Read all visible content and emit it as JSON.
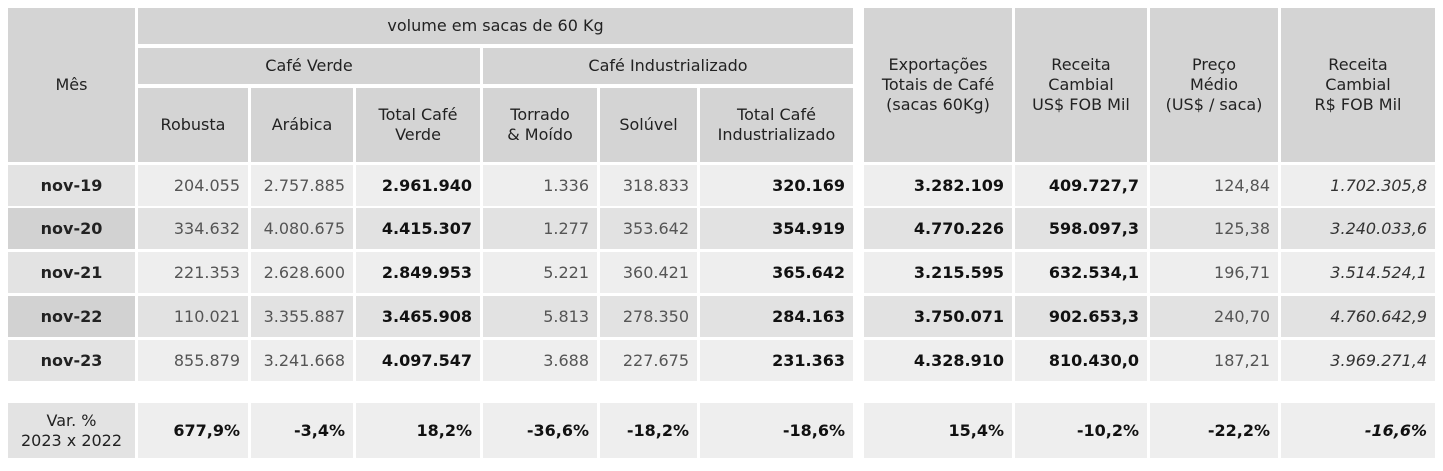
{
  "header": {
    "mes": "Mês",
    "volume": "volume em sacas de 60 Kg",
    "cafe_verde": "Café Verde",
    "cafe_industrializado": "Café Industrializado",
    "robusta": "Robusta",
    "arabica": "Arábica",
    "total_verde": [
      "Total Café",
      "Verde"
    ],
    "torrado": [
      "Torrado",
      "& Moído"
    ],
    "soluvel": "Solúvel",
    "total_ind": [
      "Total Café",
      "Industrializado"
    ],
    "exportacoes": [
      "Exportações",
      "Totais de Café",
      "(sacas 60Kg)"
    ],
    "receita_usd": [
      "Receita",
      "Cambial",
      "US$ FOB Mil"
    ],
    "preco": [
      "Preço",
      "Médio",
      "(US$ / saca)"
    ],
    "receita_brl": [
      "Receita",
      "Cambial",
      "R$ FOB Mil"
    ]
  },
  "rows": [
    {
      "mes": "nov-19",
      "robusta": "204.055",
      "arabica": "2.757.885",
      "total_verde": "2.961.940",
      "torrado": "1.336",
      "soluvel": "318.833",
      "total_ind": "320.169",
      "exportacoes": "3.282.109",
      "receita_usd": "409.727,7",
      "preco": "124,84",
      "receita_brl": "1.702.305,8"
    },
    {
      "mes": "nov-20",
      "robusta": "334.632",
      "arabica": "4.080.675",
      "total_verde": "4.415.307",
      "torrado": "1.277",
      "soluvel": "353.642",
      "total_ind": "354.919",
      "exportacoes": "4.770.226",
      "receita_usd": "598.097,3",
      "preco": "125,38",
      "receita_brl": "3.240.033,6"
    },
    {
      "mes": "nov-21",
      "robusta": "221.353",
      "arabica": "2.628.600",
      "total_verde": "2.849.953",
      "torrado": "5.221",
      "soluvel": "360.421",
      "total_ind": "365.642",
      "exportacoes": "3.215.595",
      "receita_usd": "632.534,1",
      "preco": "196,71",
      "receita_brl": "3.514.524,1"
    },
    {
      "mes": "nov-22",
      "robusta": "110.021",
      "arabica": "3.355.887",
      "total_verde": "3.465.908",
      "torrado": "5.813",
      "soluvel": "278.350",
      "total_ind": "284.163",
      "exportacoes": "3.750.071",
      "receita_usd": "902.653,3",
      "preco": "240,70",
      "receita_brl": "4.760.642,9"
    },
    {
      "mes": "nov-23",
      "robusta": "855.879",
      "arabica": "3.241.668",
      "total_verde": "4.097.547",
      "torrado": "3.688",
      "soluvel": "227.675",
      "total_ind": "231.363",
      "exportacoes": "4.328.910",
      "receita_usd": "810.430,0",
      "preco": "187,21",
      "receita_brl": "3.969.271,4"
    }
  ],
  "variation": {
    "label": [
      "Var. %",
      "2023 x 2022"
    ],
    "robusta": "677,9%",
    "arabica": "-3,4%",
    "total_verde": "18,2%",
    "torrado": "-36,6%",
    "soluvel": "-18,2%",
    "total_ind": "-18,6%",
    "exportacoes": "15,4%",
    "receita_usd": "-10,2%",
    "preco": "-22,2%",
    "receita_brl": "-16,6%"
  }
}
